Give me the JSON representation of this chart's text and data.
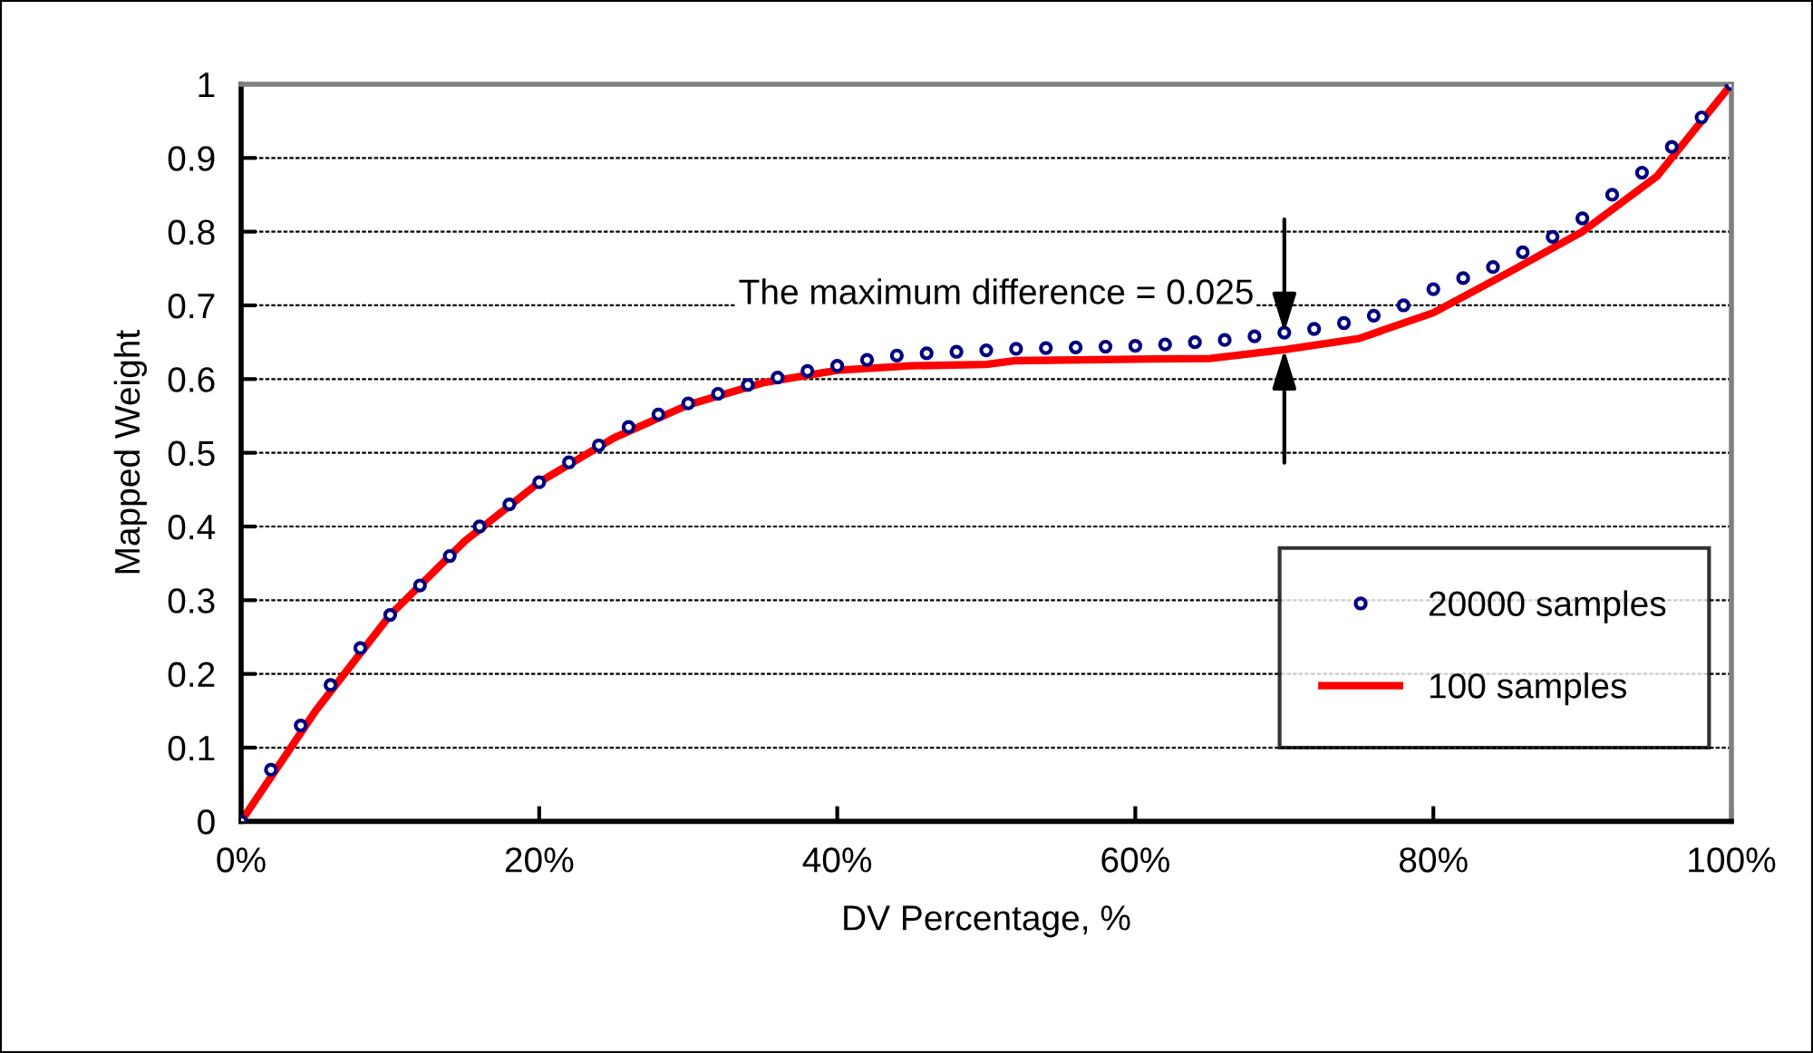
{
  "chart_data": {
    "type": "line",
    "xlabel": "DV Percentage, %",
    "ylabel": "Mapped Weight",
    "xlim": [
      0,
      100
    ],
    "ylim": [
      0,
      1
    ],
    "xticks": [
      {
        "value": 0,
        "label": "0%"
      },
      {
        "value": 20,
        "label": "20%"
      },
      {
        "value": 40,
        "label": "40%"
      },
      {
        "value": 60,
        "label": "60%"
      },
      {
        "value": 80,
        "label": "80%"
      },
      {
        "value": 100,
        "label": "100%"
      }
    ],
    "yticks": [
      0,
      0.1,
      0.2,
      0.3,
      0.4,
      0.5,
      0.6,
      0.7,
      0.8,
      0.9,
      1
    ],
    "grid": "y",
    "legend": "bottom right",
    "annotations": [
      {
        "text": "The maximum difference = 0.025",
        "x": 70,
        "y": 0.663
      }
    ],
    "series": [
      {
        "name": "20000 samples",
        "type": "scatter",
        "marker": "circle",
        "color": "#000080",
        "x": [
          0,
          2,
          4,
          6,
          8,
          10,
          12,
          14,
          16,
          18,
          20,
          22,
          24,
          26,
          28,
          30,
          32,
          34,
          36,
          38,
          40,
          42,
          44,
          46,
          48,
          50,
          52,
          54,
          56,
          58,
          60,
          62,
          64,
          66,
          68,
          70,
          72,
          74,
          76,
          78,
          80,
          82,
          84,
          86,
          88,
          90,
          92,
          94,
          96,
          98,
          100
        ],
        "values": [
          0,
          0.07,
          0.13,
          0.185,
          0.235,
          0.28,
          0.32,
          0.36,
          0.4,
          0.43,
          0.46,
          0.487,
          0.51,
          0.535,
          0.552,
          0.567,
          0.58,
          0.592,
          0.602,
          0.611,
          0.618,
          0.626,
          0.632,
          0.635,
          0.637,
          0.639,
          0.641,
          0.642,
          0.643,
          0.644,
          0.645,
          0.647,
          0.65,
          0.653,
          0.658,
          0.663,
          0.668,
          0.676,
          0.686,
          0.7,
          0.722,
          0.737,
          0.752,
          0.772,
          0.793,
          0.818,
          0.85,
          0.88,
          0.915,
          0.955,
          1
        ]
      },
      {
        "name": "100 samples",
        "marker": "none",
        "line_style": "solid",
        "color": "#ff0000",
        "x": [
          0,
          5,
          10,
          15,
          20,
          25,
          30,
          35,
          40,
          45,
          50,
          52,
          60,
          65,
          70,
          75,
          80,
          85,
          90,
          95,
          100
        ],
        "values": [
          0,
          0.15,
          0.28,
          0.38,
          0.46,
          0.52,
          0.565,
          0.595,
          0.612,
          0.618,
          0.62,
          0.625,
          0.627,
          0.628,
          0.64,
          0.655,
          0.69,
          0.744,
          0.8,
          0.875,
          1
        ]
      }
    ]
  }
}
